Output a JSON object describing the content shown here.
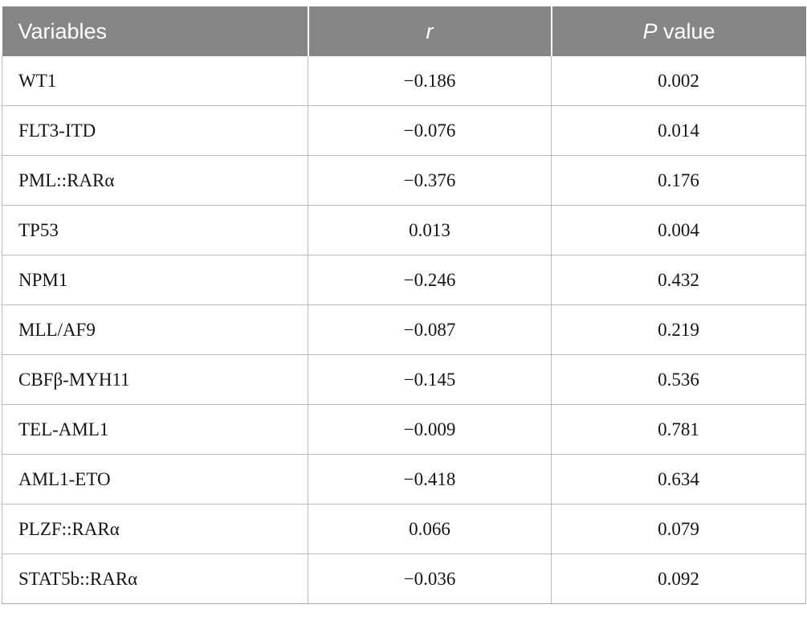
{
  "header": {
    "variables": "Variables",
    "r": "r",
    "p_italic": "P",
    "p_rest": " value"
  },
  "table": {
    "rows": [
      {
        "variable": "WT1",
        "r": "−0.186",
        "p": "0.002"
      },
      {
        "variable": "FLT3-ITD",
        "r": "−0.076",
        "p": "0.014"
      },
      {
        "variable": "PML::RARα",
        "r": "−0.376",
        "p": "0.176"
      },
      {
        "variable": "TP53",
        "r": "0.013",
        "p": "0.004"
      },
      {
        "variable": "NPM1",
        "r": "−0.246",
        "p": "0.432"
      },
      {
        "variable": "MLL/AF9",
        "r": "−0.087",
        "p": "0.219"
      },
      {
        "variable": "CBFβ-MYH11",
        "r": "−0.145",
        "p": "0.536"
      },
      {
        "variable": "TEL-AML1",
        "r": "−0.009",
        "p": "0.781"
      },
      {
        "variable": "AML1-ETO",
        "r": "−0.418",
        "p": "0.634"
      },
      {
        "variable": "PLZF::RARα",
        "r": "0.066",
        "p": "0.079"
      },
      {
        "variable": "STAT5b::RARα",
        "r": "−0.036",
        "p": "0.092"
      }
    ]
  }
}
